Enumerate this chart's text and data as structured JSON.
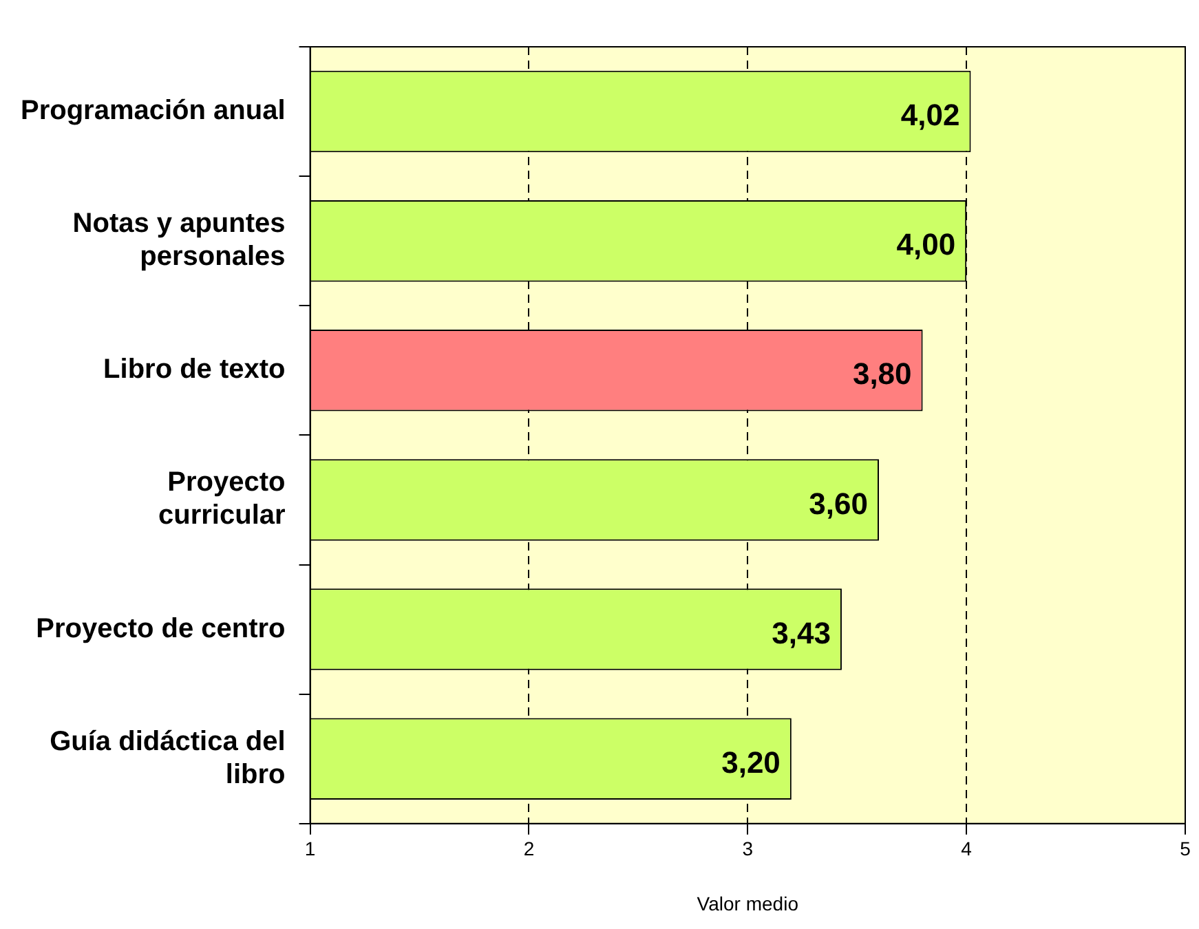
{
  "chart_data": {
    "type": "bar",
    "orientation": "horizontal",
    "xlabel": "Valor medio",
    "categories": [
      "Programación anual",
      "Notas y apuntes personales",
      "Libro de texto",
      "Proyecto curricular",
      "Proyecto de centro",
      "Guía didáctica del libro"
    ],
    "values": [
      4.02,
      4.0,
      3.8,
      3.6,
      3.43,
      3.2
    ],
    "colors": [
      "#ccff66",
      "#ccff66",
      "#ff7f7f",
      "#ccff66",
      "#ccff66",
      "#ccff66"
    ],
    "value_labels": [
      "4,02",
      "4,00",
      "3,80",
      "3,60",
      "3,43",
      "3,20"
    ],
    "xlim": [
      1,
      5
    ],
    "xticks": [
      1,
      2,
      3,
      4,
      5
    ],
    "grid": "x",
    "line_style": "dashed",
    "legend": false
  }
}
